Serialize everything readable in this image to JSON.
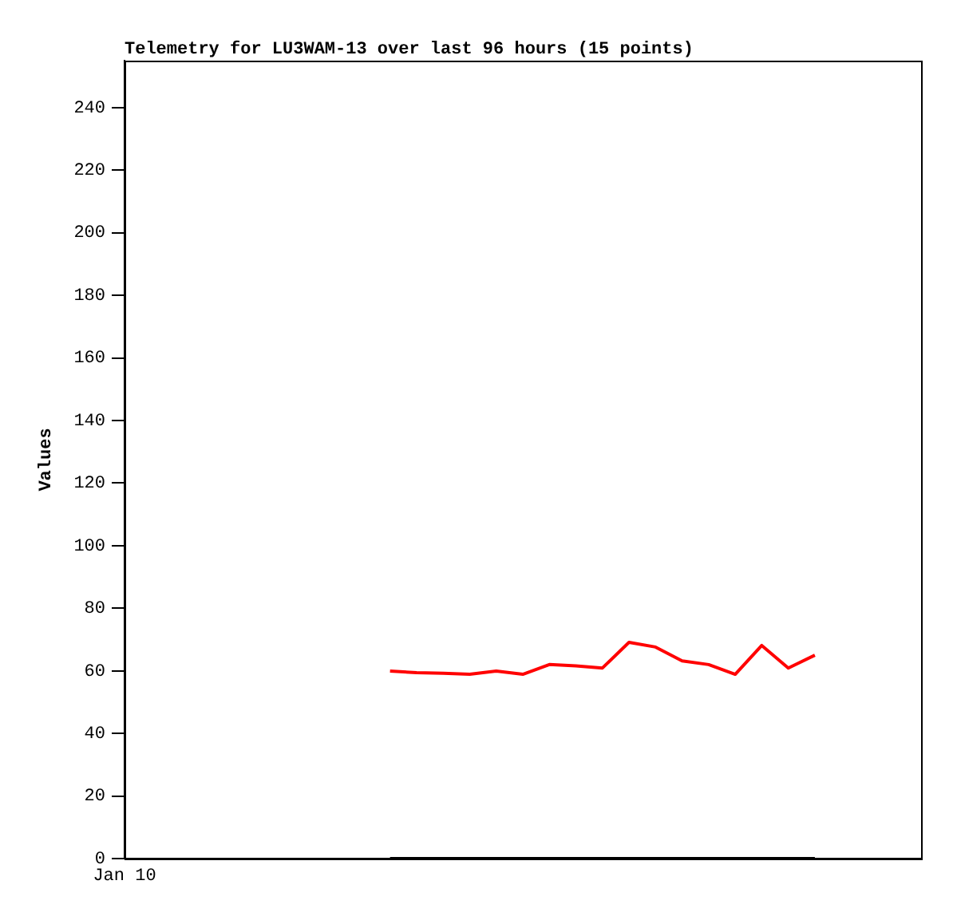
{
  "chart_data": {
    "type": "line",
    "title": "Telemetry for LU3WAM-13 over last 96 hours (15 points)",
    "ylabel": "Values",
    "categories": [
      "Jan 10",
      null,
      null,
      null,
      null,
      null,
      null,
      null,
      null,
      null,
      null,
      null,
      null,
      null,
      null,
      null,
      null,
      null,
      null,
      null,
      null,
      null,
      null,
      null,
      null,
      null,
      null,
      null,
      null,
      null,
      null
    ],
    "ylim": [
      0,
      255
    ],
    "yticks": [
      0,
      20,
      40,
      60,
      80,
      100,
      120,
      140,
      160,
      180,
      200,
      220,
      240
    ],
    "marker": "none",
    "line_style": "solid",
    "series": [
      {
        "color": "#ff0000",
        "values": [
          null,
          null,
          null,
          null,
          null,
          null,
          null,
          null,
          null,
          null,
          59.9,
          59.4,
          59.2,
          58.9,
          59.9,
          58.9,
          62,
          61.6,
          60.9,
          69.1,
          67.6,
          63.2,
          62,
          58.9,
          68.1,
          60.9,
          65,
          null,
          null,
          null,
          null
        ]
      },
      {
        "color": "#000000",
        "values": [
          null,
          null,
          null,
          null,
          null,
          null,
          null,
          null,
          null,
          null,
          0,
          0,
          0,
          0,
          0,
          0,
          0,
          0,
          0,
          0,
          0,
          0,
          0,
          0,
          0,
          0,
          0,
          null,
          null,
          null,
          null
        ]
      }
    ]
  }
}
